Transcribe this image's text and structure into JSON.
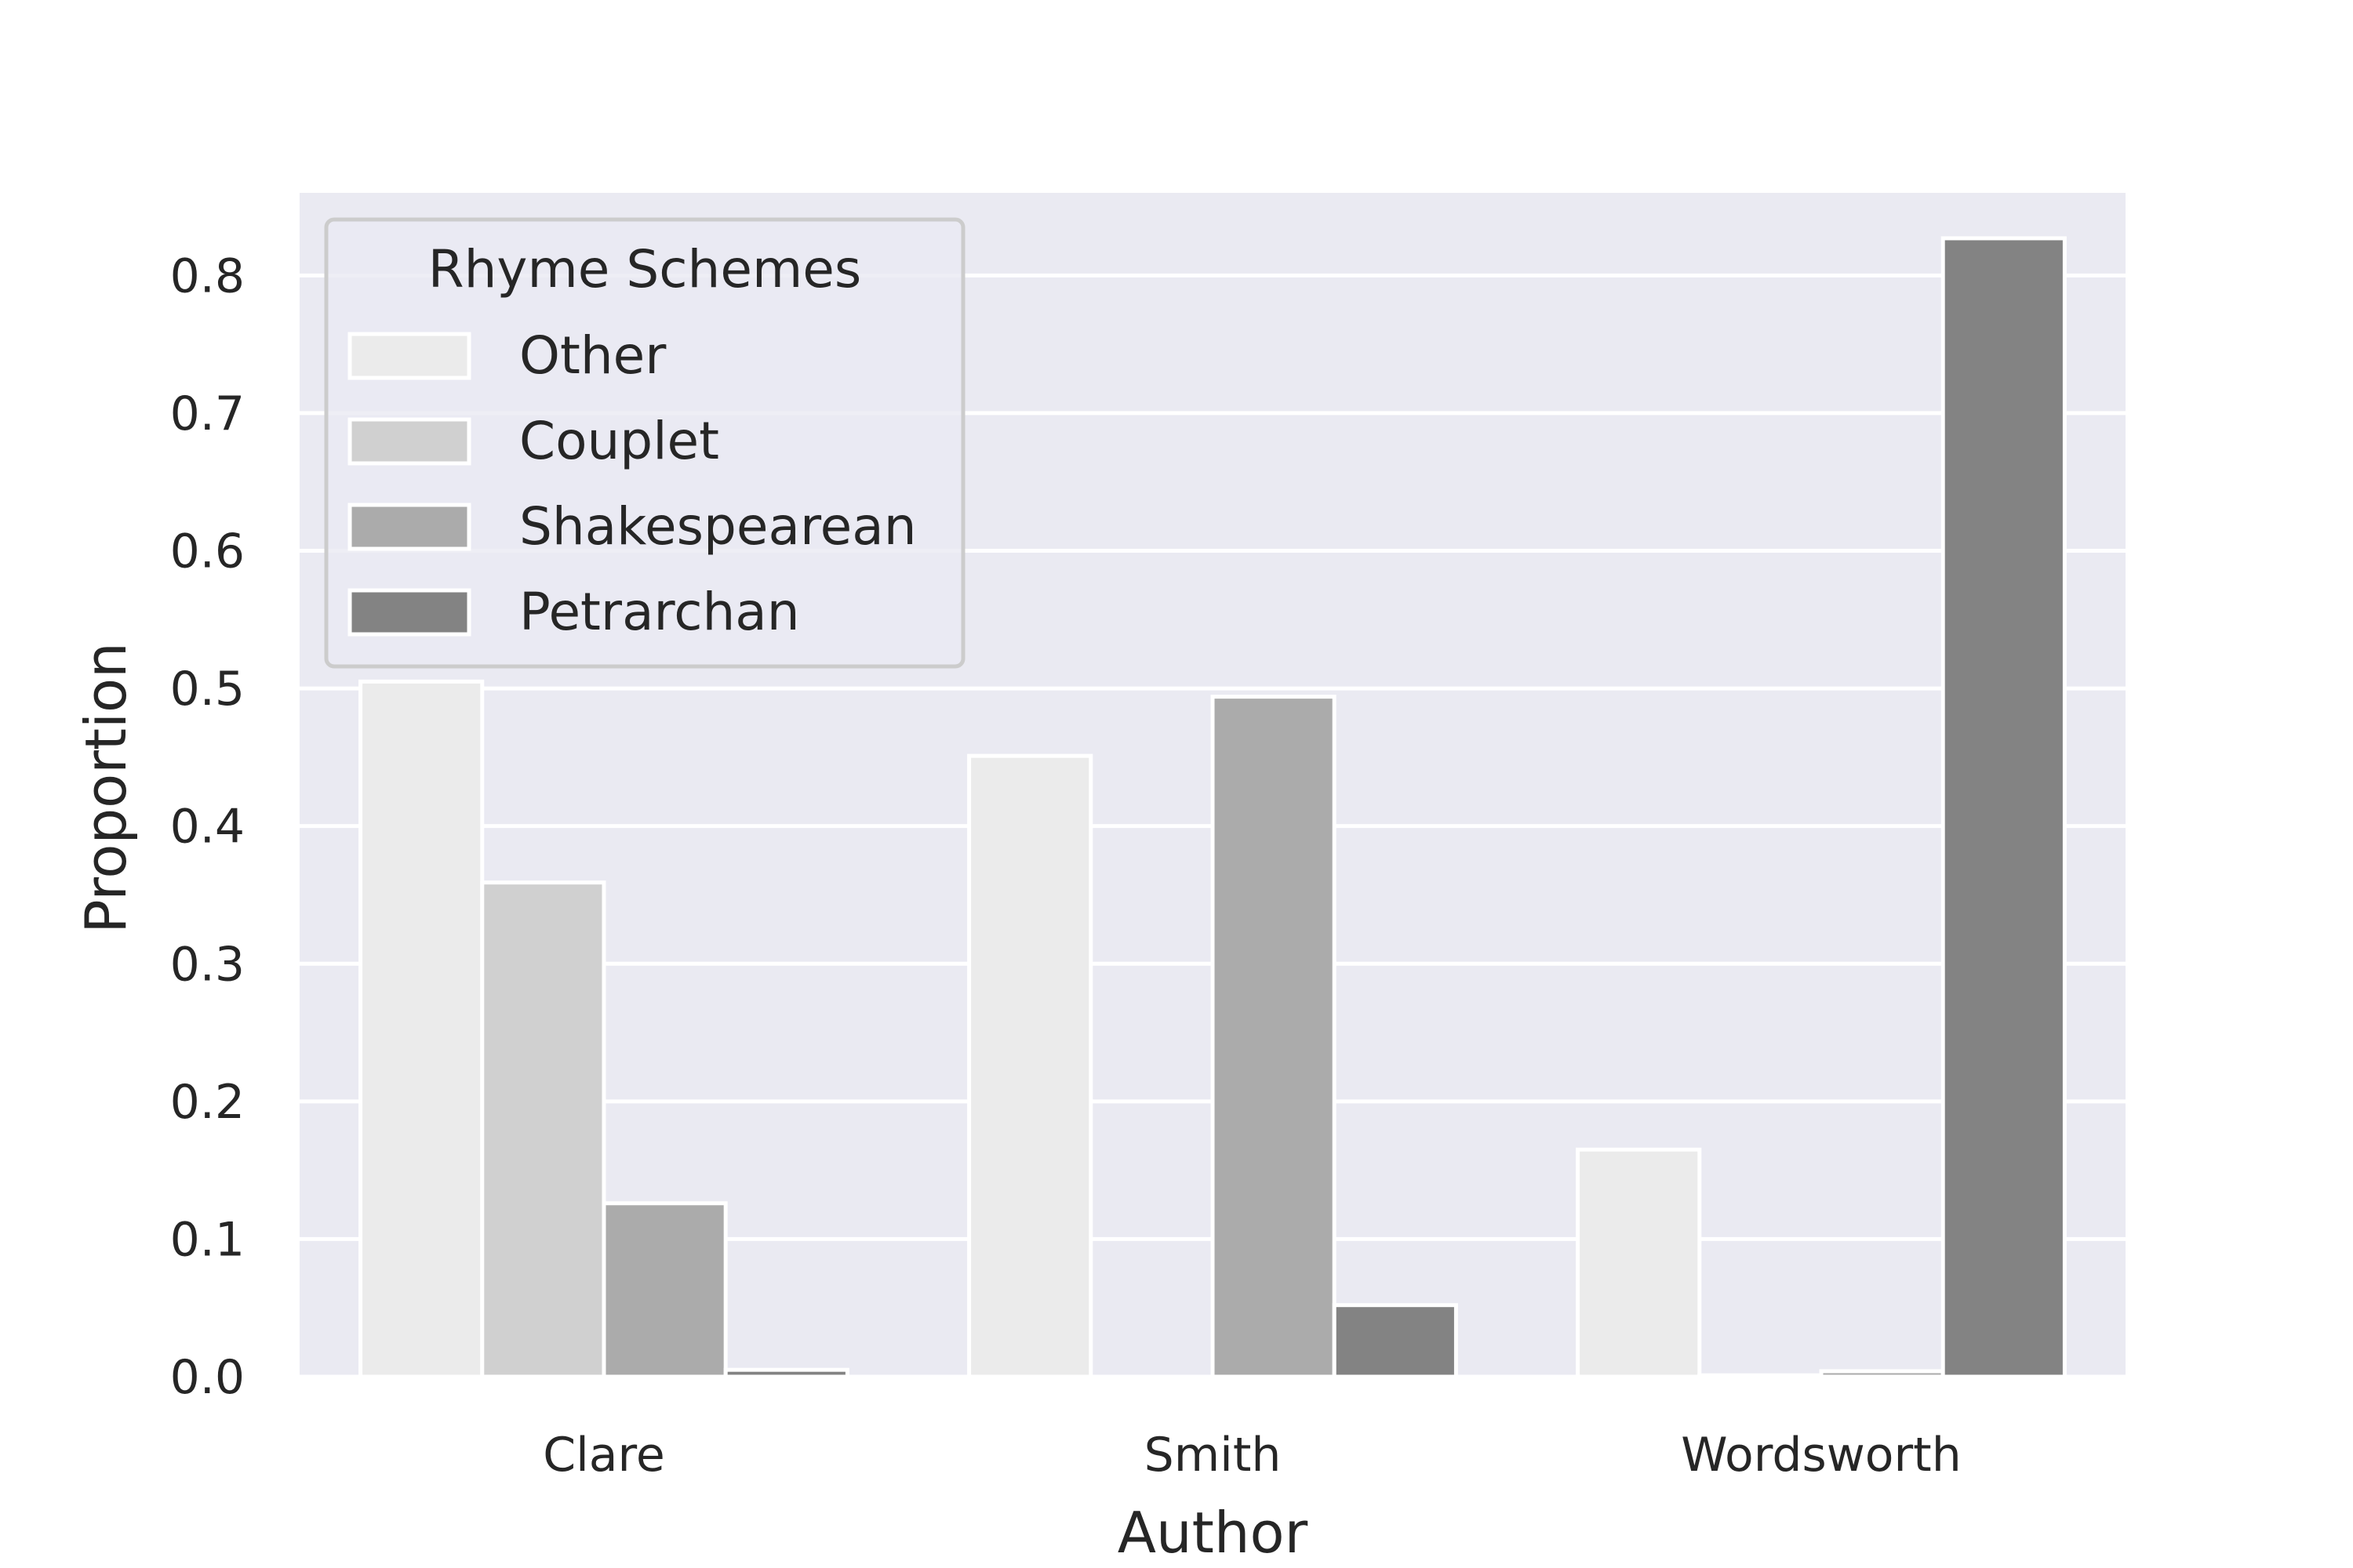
{
  "chart_data": {
    "type": "bar",
    "title": "",
    "xlabel": "Author",
    "ylabel": "Proportion",
    "categories": [
      "Clare",
      "Smith",
      "Wordsworth"
    ],
    "series": [
      {
        "name": "Other",
        "color": "#ebebeb",
        "values": [
          0.505,
          0.451,
          0.165
        ]
      },
      {
        "name": "Couplet",
        "color": "#d0d0d0",
        "values": [
          0.359,
          0.0,
          0.001
        ]
      },
      {
        "name": "Shakespearean",
        "color": "#ababab",
        "values": [
          0.126,
          0.494,
          0.004
        ]
      },
      {
        "name": "Petrarchan",
        "color": "#838383",
        "values": [
          0.005,
          0.052,
          0.827
        ]
      }
    ],
    "ylim": [
      0,
      0.86
    ],
    "yticks": [
      "0.0",
      "0.1",
      "0.2",
      "0.3",
      "0.4",
      "0.5",
      "0.6",
      "0.7",
      "0.8"
    ],
    "grid": true,
    "background": "#eaeaf2",
    "legend": {
      "title": "Rhyme Schemes",
      "placement": "top-left"
    }
  }
}
